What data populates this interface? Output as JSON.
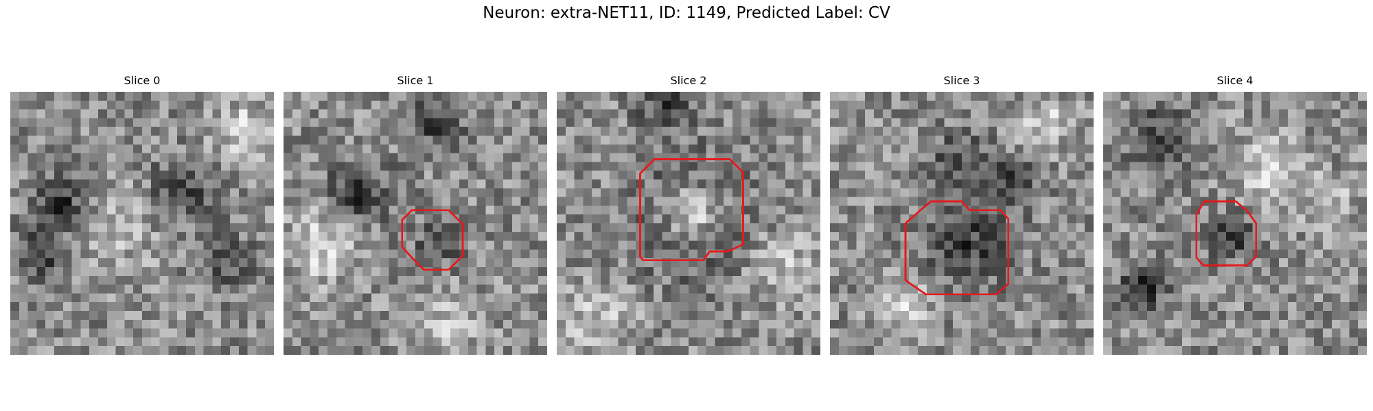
{
  "figure": {
    "title": "Neuron: extra-NET11, ID: 1149, Predicted Label: CV"
  },
  "colors": {
    "outline": "#e41a1c",
    "background": "#ffffff",
    "colormap": "grayscale"
  },
  "panels": [
    {
      "title": "Slice 0",
      "has_outline": false
    },
    {
      "title": "Slice 1",
      "has_outline": true
    },
    {
      "title": "Slice 2",
      "has_outline": true
    },
    {
      "title": "Slice 3",
      "has_outline": true
    },
    {
      "title": "Slice 4",
      "has_outline": true
    }
  ]
}
